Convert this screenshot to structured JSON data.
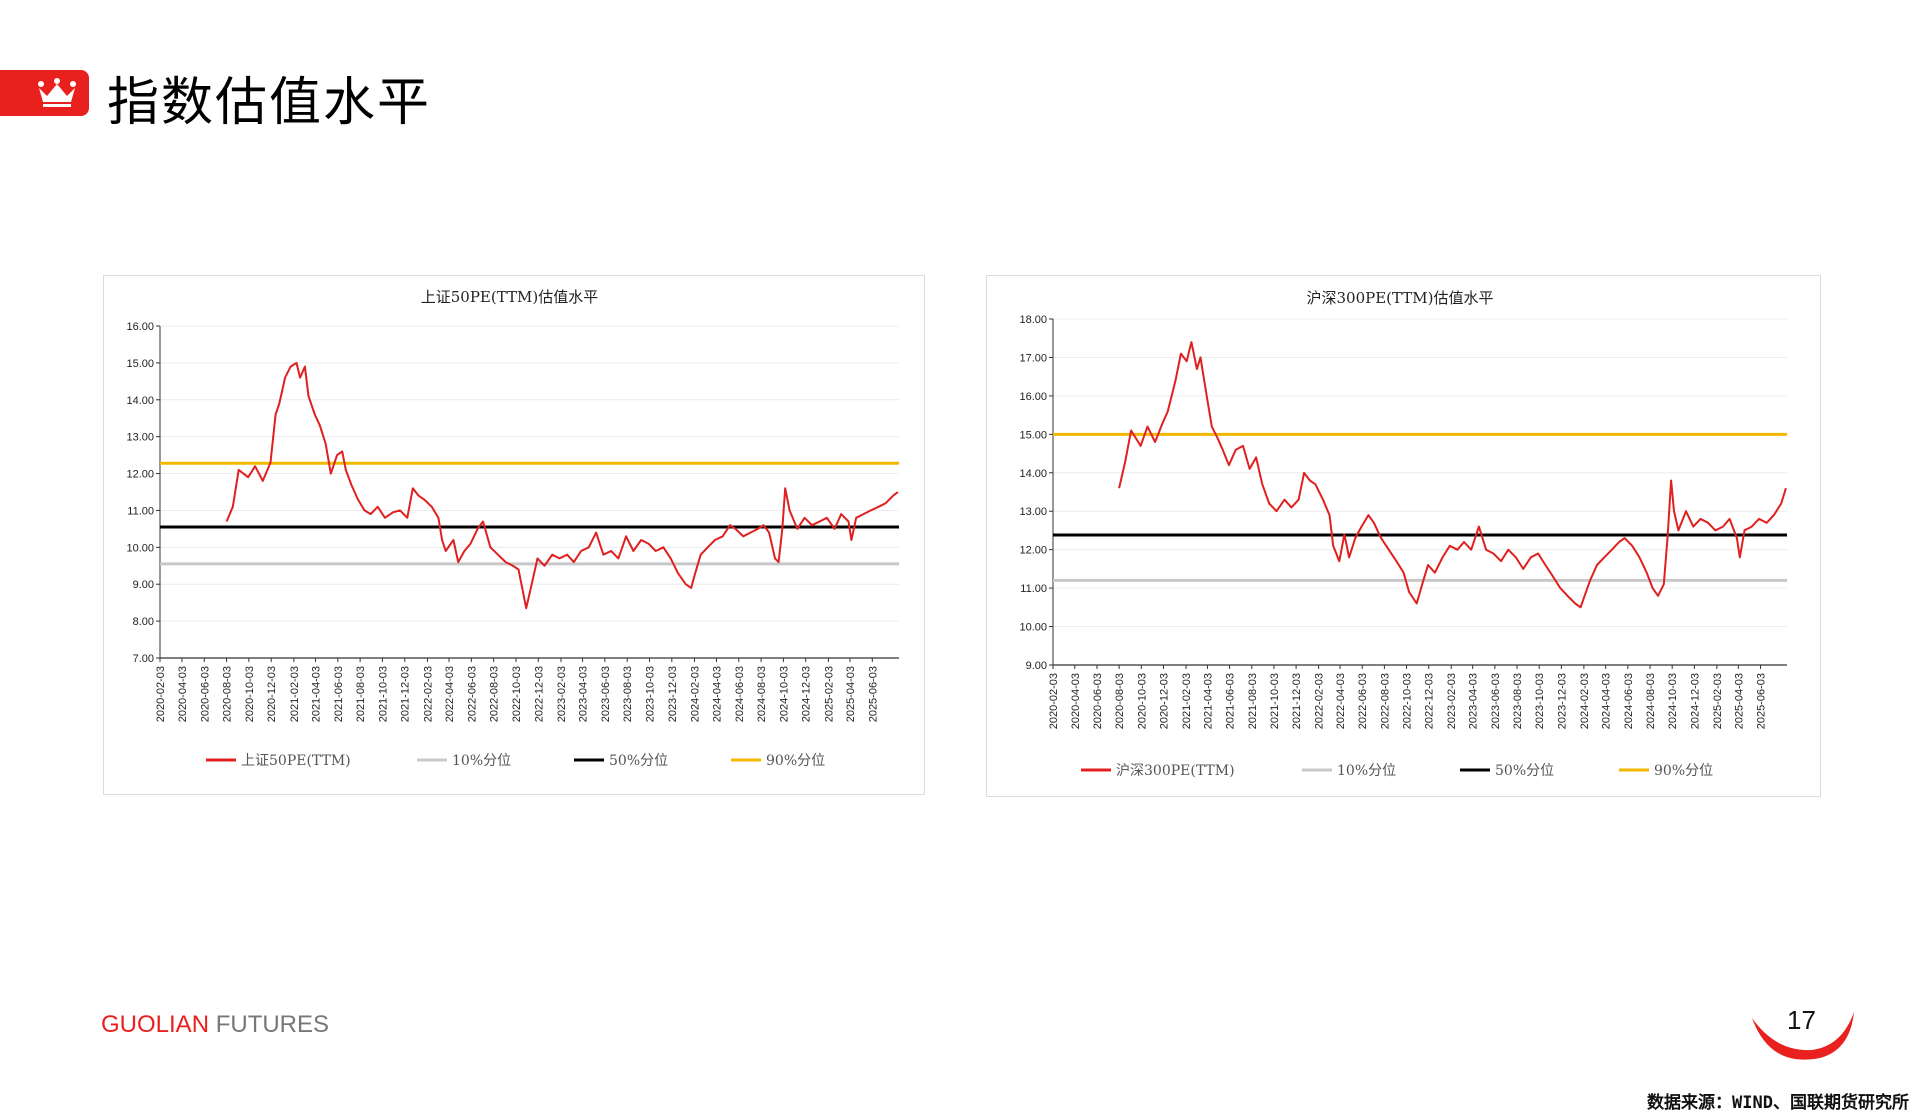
{
  "page": {
    "title": "指数估值水平",
    "brand_part1": "GUOLIAN",
    "brand_part2": " FUTURES",
    "page_number": "17",
    "source": "数据来源：WIND、国联期货研究所"
  },
  "colors": {
    "accent": "#e8211f",
    "series_main": "#e02020",
    "p10": "#c8c8c8",
    "p50": "#000000",
    "p90": "#f5b800"
  },
  "icons": {
    "title_icon": "crown-icon"
  },
  "chart_data": [
    {
      "type": "line",
      "title": "上证50PE(TTM)估值水平",
      "ylim": [
        7,
        16
      ],
      "yticks": [
        "16.00",
        "15.00",
        "14.00",
        "13.00",
        "12.00",
        "11.00",
        "10.00",
        "9.00",
        "8.00",
        "7.00"
      ],
      "xticks": [
        "2020-02-03",
        "2020-04-03",
        "2020-06-03",
        "2020-08-03",
        "2020-10-03",
        "2020-12-03",
        "2021-02-03",
        "2021-04-03",
        "2021-06-03",
        "2021-08-03",
        "2021-10-03",
        "2021-12-03",
        "2022-02-03",
        "2022-04-03",
        "2022-06-03",
        "2022-08-03",
        "2022-10-03",
        "2022-12-03",
        "2023-02-03",
        "2023-04-03",
        "2023-06-03",
        "2023-08-03",
        "2023-10-03",
        "2023-12-03",
        "2024-02-03",
        "2024-04-03",
        "2024-06-03",
        "2024-08-03",
        "2024-10-03",
        "2024-12-03",
        "2025-02-03",
        "2025-04-03",
        "2025-06-03"
      ],
      "xlim": [
        "2020-02-03",
        "2025-08-15"
      ],
      "grid": true,
      "legend_position": "bottom",
      "series": [
        {
          "name": "上证50PE(TTM)",
          "x": [
            "2020-08-03",
            "2020-08-20",
            "2020-09-05",
            "2020-10-01",
            "2020-10-20",
            "2020-11-10",
            "2020-12-01",
            "2020-12-15",
            "2020-12-25",
            "2021-01-10",
            "2021-01-25",
            "2021-02-10",
            "2021-02-20",
            "2021-03-05",
            "2021-03-15",
            "2021-04-01",
            "2021-04-15",
            "2021-05-01",
            "2021-05-15",
            "2021-06-01",
            "2021-06-15",
            "2021-06-25",
            "2021-07-10",
            "2021-07-28",
            "2021-08-15",
            "2021-09-01",
            "2021-09-20",
            "2021-10-10",
            "2021-11-01",
            "2021-11-20",
            "2021-12-10",
            "2021-12-25",
            "2022-01-10",
            "2022-01-25",
            "2022-02-15",
            "2022-03-05",
            "2022-03-15",
            "2022-03-25",
            "2022-04-15",
            "2022-04-28",
            "2022-05-15",
            "2022-06-01",
            "2022-06-20",
            "2022-07-05",
            "2022-07-25",
            "2022-08-15",
            "2022-09-05",
            "2022-09-25",
            "2022-10-10",
            "2022-10-20",
            "2022-10-31",
            "2022-11-15",
            "2022-12-01",
            "2022-12-20",
            "2023-01-10",
            "2023-01-30",
            "2023-02-20",
            "2023-03-10",
            "2023-03-30",
            "2023-04-20",
            "2023-05-10",
            "2023-05-30",
            "2023-06-20",
            "2023-07-10",
            "2023-07-31",
            "2023-08-20",
            "2023-09-10",
            "2023-09-30",
            "2023-10-20",
            "2023-11-10",
            "2023-11-30",
            "2023-12-20",
            "2024-01-10",
            "2024-01-25",
            "2024-02-05",
            "2024-02-20",
            "2024-03-10",
            "2024-03-30",
            "2024-04-20",
            "2024-05-10",
            "2024-05-25",
            "2024-06-15",
            "2024-07-05",
            "2024-07-25",
            "2024-08-10",
            "2024-08-25",
            "2024-09-10",
            "2024-09-20",
            "2024-09-30",
            "2024-10-08",
            "2024-10-20",
            "2024-11-10",
            "2024-11-30",
            "2024-12-20",
            "2025-01-10",
            "2025-01-30",
            "2025-02-20",
            "2025-03-10",
            "2025-03-30",
            "2025-04-07",
            "2025-04-20",
            "2025-05-10",
            "2025-05-30",
            "2025-06-20",
            "2025-07-10",
            "2025-07-30",
            "2025-08-12"
          ],
          "values": [
            10.7,
            11.1,
            12.1,
            11.9,
            12.2,
            11.8,
            12.3,
            13.6,
            13.9,
            14.6,
            14.9,
            15.0,
            14.6,
            14.9,
            14.1,
            13.6,
            13.3,
            12.8,
            12.0,
            12.5,
            12.6,
            12.1,
            11.7,
            11.3,
            11.0,
            10.9,
            11.1,
            10.8,
            10.95,
            11.0,
            10.8,
            11.6,
            11.4,
            11.3,
            11.1,
            10.8,
            10.2,
            9.9,
            10.2,
            9.6,
            9.9,
            10.1,
            10.5,
            10.7,
            10.0,
            9.8,
            9.6,
            9.5,
            9.4,
            8.9,
            8.35,
            9.0,
            9.7,
            9.5,
            9.8,
            9.7,
            9.8,
            9.6,
            9.9,
            10.0,
            10.4,
            9.8,
            9.9,
            9.7,
            10.3,
            9.9,
            10.2,
            10.1,
            9.9,
            10.0,
            9.7,
            9.3,
            9.0,
            8.9,
            9.3,
            9.8,
            10.0,
            10.2,
            10.3,
            10.6,
            10.5,
            10.3,
            10.4,
            10.5,
            10.6,
            10.4,
            9.7,
            9.6,
            10.5,
            11.6,
            11.0,
            10.5,
            10.8,
            10.6,
            10.7,
            10.8,
            10.5,
            10.9,
            10.7,
            10.2,
            10.8,
            10.9,
            11.0,
            11.1,
            11.2,
            11.4,
            11.5
          ]
        },
        {
          "name": "10%分位",
          "value": 9.55
        },
        {
          "name": "50%分位",
          "value": 10.55
        },
        {
          "name": "90%分位",
          "value": 12.28
        }
      ]
    },
    {
      "type": "line",
      "title": "沪深300PE(TTM)估值水平",
      "ylim": [
        9,
        18
      ],
      "yticks": [
        "18.00",
        "17.00",
        "16.00",
        "15.00",
        "14.00",
        "13.00",
        "12.00",
        "11.00",
        "10.00",
        "9.00"
      ],
      "xticks": [
        "2020-02-03",
        "2020-04-03",
        "2020-06-03",
        "2020-08-03",
        "2020-10-03",
        "2020-12-03",
        "2021-02-03",
        "2021-04-03",
        "2021-06-03",
        "2021-08-03",
        "2021-10-03",
        "2021-12-03",
        "2022-02-03",
        "2022-04-03",
        "2022-06-03",
        "2022-08-03",
        "2022-10-03",
        "2022-12-03",
        "2023-02-03",
        "2023-04-03",
        "2023-06-03",
        "2023-08-03",
        "2023-10-03",
        "2023-12-03",
        "2024-02-03",
        "2024-04-03",
        "2024-06-03",
        "2024-08-03",
        "2024-10-03",
        "2024-12-03",
        "2025-02-03",
        "2025-04-03",
        "2025-06-03"
      ],
      "xlim": [
        "2020-02-03",
        "2025-08-15"
      ],
      "grid": true,
      "legend_position": "bottom",
      "series": [
        {
          "name": "沪深300PE(TTM)",
          "x": [
            "2020-08-03",
            "2020-08-20",
            "2020-09-05",
            "2020-10-01",
            "2020-10-20",
            "2020-11-10",
            "2020-12-01",
            "2020-12-15",
            "2021-01-05",
            "2021-01-20",
            "2021-02-05",
            "2021-02-18",
            "2021-03-05",
            "2021-03-15",
            "2021-04-01",
            "2021-04-15",
            "2021-05-01",
            "2021-05-15",
            "2021-06-01",
            "2021-06-20",
            "2021-07-10",
            "2021-07-28",
            "2021-08-15",
            "2021-09-01",
            "2021-09-20",
            "2021-10-10",
            "2021-11-01",
            "2021-11-20",
            "2021-12-10",
            "2021-12-25",
            "2022-01-10",
            "2022-01-25",
            "2022-02-15",
            "2022-03-05",
            "2022-03-15",
            "2022-04-01",
            "2022-04-15",
            "2022-04-28",
            "2022-05-15",
            "2022-06-01",
            "2022-06-20",
            "2022-07-05",
            "2022-07-25",
            "2022-08-15",
            "2022-09-05",
            "2022-09-25",
            "2022-10-10",
            "2022-10-31",
            "2022-11-15",
            "2022-12-01",
            "2022-12-20",
            "2023-01-10",
            "2023-01-30",
            "2023-02-20",
            "2023-03-10",
            "2023-03-30",
            "2023-04-20",
            "2023-05-10",
            "2023-05-30",
            "2023-06-20",
            "2023-07-10",
            "2023-07-31",
            "2023-08-20",
            "2023-09-10",
            "2023-09-30",
            "2023-10-20",
            "2023-11-10",
            "2023-11-30",
            "2023-12-20",
            "2024-01-10",
            "2024-01-25",
            "2024-02-05",
            "2024-02-20",
            "2024-03-10",
            "2024-03-30",
            "2024-04-20",
            "2024-05-10",
            "2024-05-25",
            "2024-06-15",
            "2024-07-05",
            "2024-07-25",
            "2024-08-10",
            "2024-08-25",
            "2024-09-10",
            "2024-09-20",
            "2024-09-30",
            "2024-10-08",
            "2024-10-20",
            "2024-11-10",
            "2024-11-30",
            "2024-12-20",
            "2025-01-10",
            "2025-01-30",
            "2025-02-20",
            "2025-03-10",
            "2025-03-30",
            "2025-04-07",
            "2025-04-20",
            "2025-05-10",
            "2025-05-30",
            "2025-06-20",
            "2025-07-10",
            "2025-07-30",
            "2025-08-12"
          ],
          "values": [
            13.6,
            14.3,
            15.1,
            14.7,
            15.2,
            14.8,
            15.3,
            15.6,
            16.4,
            17.1,
            16.9,
            17.4,
            16.7,
            17.0,
            16.0,
            15.2,
            14.9,
            14.6,
            14.2,
            14.6,
            14.7,
            14.1,
            14.4,
            13.7,
            13.2,
            13.0,
            13.3,
            13.1,
            13.3,
            14.0,
            13.8,
            13.7,
            13.3,
            12.9,
            12.1,
            11.7,
            12.4,
            11.8,
            12.3,
            12.6,
            12.9,
            12.7,
            12.3,
            12.0,
            11.7,
            11.4,
            10.9,
            10.6,
            11.1,
            11.6,
            11.4,
            11.8,
            12.1,
            12.0,
            12.2,
            12.0,
            12.6,
            12.0,
            11.9,
            11.7,
            12.0,
            11.8,
            11.5,
            11.8,
            11.9,
            11.6,
            11.3,
            11.0,
            10.8,
            10.6,
            10.5,
            10.8,
            11.2,
            11.6,
            11.8,
            12.0,
            12.2,
            12.3,
            12.1,
            11.8,
            11.4,
            11.0,
            10.8,
            11.1,
            12.3,
            13.8,
            13.0,
            12.5,
            13.0,
            12.6,
            12.8,
            12.7,
            12.5,
            12.6,
            12.8,
            12.3,
            11.8,
            12.5,
            12.6,
            12.8,
            12.7,
            12.9,
            13.2,
            13.6
          ]
        },
        {
          "name": "10%分位",
          "value": 11.2
        },
        {
          "name": "50%分位",
          "value": 12.38
        },
        {
          "name": "90%分位",
          "value": 15.0
        }
      ]
    }
  ]
}
